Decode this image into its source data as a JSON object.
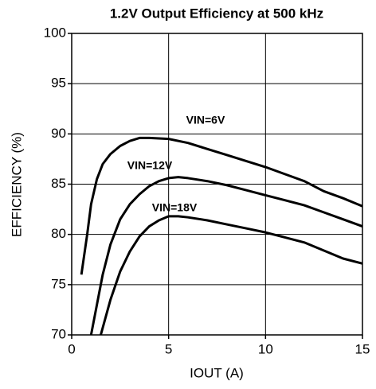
{
  "chart_data": {
    "type": "line",
    "title": "1.2V Output Efficiency at 500 kHz",
    "xlabel": "IOUT (A)",
    "ylabel": "EFFICIENCY (%)",
    "xlim": [
      0,
      15
    ],
    "xticks": [
      0,
      5,
      10,
      15
    ],
    "ylim": [
      70,
      100
    ],
    "yticks": [
      70,
      75,
      80,
      85,
      90,
      95,
      100
    ],
    "grid": true,
    "series": [
      {
        "name": "VIN=6V",
        "color": "#000000",
        "x": [
          0.5,
          0.8,
          1,
          1.3,
          1.6,
          2,
          2.5,
          3,
          3.5,
          4,
          5,
          6,
          7,
          8,
          9,
          10,
          11,
          12,
          13,
          14,
          15
        ],
        "values": [
          76,
          80,
          83,
          85.5,
          87,
          88,
          88.8,
          89.3,
          89.6,
          89.6,
          89.5,
          89.1,
          88.5,
          87.9,
          87.3,
          86.7,
          86,
          85.3,
          84.3,
          83.6,
          82.8
        ]
      },
      {
        "name": "VIN=12V",
        "color": "#000000",
        "x": [
          1,
          1.3,
          1.6,
          2,
          2.5,
          3,
          3.5,
          4,
          4.5,
          5,
          5.5,
          6,
          7,
          8,
          9,
          10,
          11,
          12,
          13,
          14,
          15
        ],
        "values": [
          70,
          73,
          76,
          79,
          81.5,
          83,
          84,
          84.8,
          85.3,
          85.6,
          85.7,
          85.6,
          85.3,
          84.9,
          84.4,
          83.9,
          83.4,
          82.9,
          82.2,
          81.5,
          80.8
        ]
      },
      {
        "name": "VIN=18V",
        "color": "#000000",
        "x": [
          1.5,
          2,
          2.5,
          3,
          3.5,
          4,
          4.5,
          5,
          5.5,
          6,
          7,
          8,
          9,
          10,
          11,
          12,
          13,
          14,
          15
        ],
        "values": [
          70,
          73.5,
          76.3,
          78.3,
          79.8,
          80.8,
          81.4,
          81.8,
          81.8,
          81.7,
          81.4,
          81,
          80.6,
          80.2,
          79.7,
          79.2,
          78.4,
          77.6,
          77.1
        ]
      }
    ]
  }
}
